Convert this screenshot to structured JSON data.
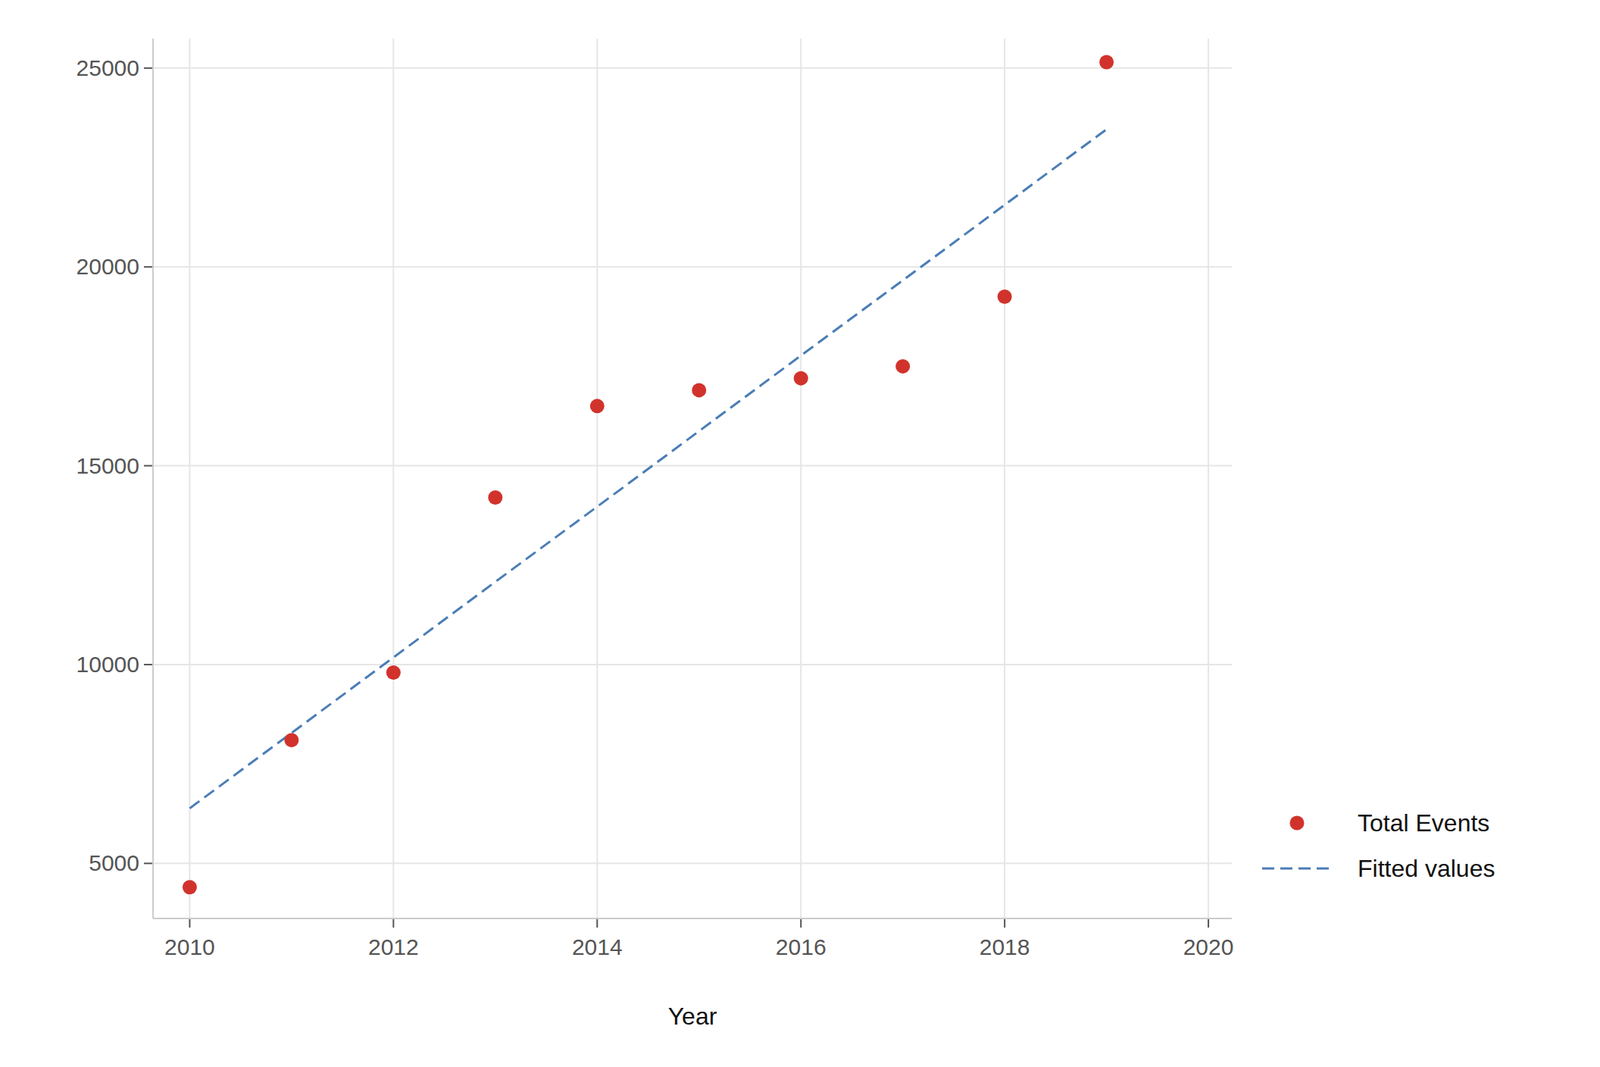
{
  "chart_data": {
    "type": "scatter",
    "x_label": "Year",
    "x": [
      2010,
      2011,
      2012,
      2013,
      2014,
      2015,
      2016,
      2017,
      2018,
      2019
    ],
    "series": [
      {
        "name": "Total Events",
        "type": "scatter",
        "marker": "circle",
        "color": "#d1332c",
        "values": [
          4400,
          8100,
          9800,
          14200,
          16500,
          16900,
          17200,
          17500,
          19250,
          25150
        ]
      },
      {
        "name": "Fitted values",
        "type": "line",
        "line_style": "dashed",
        "color": "#4a7db5",
        "values": [
          6385,
          8280,
          10180,
          12080,
          13970,
          15870,
          17770,
          19660,
          21560,
          23460
        ]
      }
    ],
    "xlim": [
      2009.64,
      2020.23
    ],
    "ylim": [
      3615,
      25740
    ],
    "xticks": [
      2010,
      2012,
      2014,
      2016,
      2018,
      2020
    ],
    "yticks": [
      5000,
      10000,
      15000,
      20000,
      25000
    ],
    "grid": true,
    "legend": "right"
  }
}
